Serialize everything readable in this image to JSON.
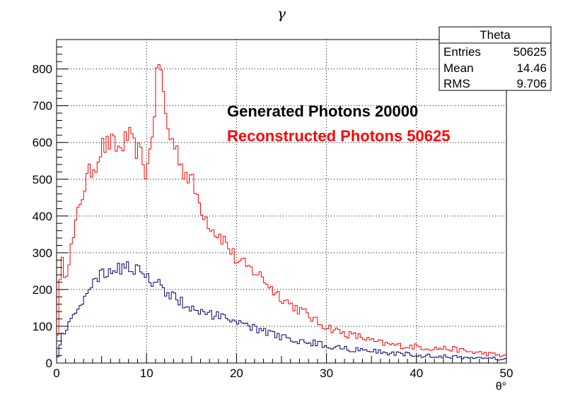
{
  "chart_data": {
    "type": "line",
    "title": "γ",
    "xlabel": "θ°",
    "ylabel": "",
    "xlim": [
      0,
      50
    ],
    "ylim": [
      0,
      880
    ],
    "x_ticks": [
      0,
      10,
      20,
      30,
      40,
      50
    ],
    "y_ticks": [
      0,
      100,
      200,
      300,
      400,
      500,
      600,
      700,
      800
    ],
    "grid": true,
    "bin_width": 0.25,
    "annotations": [
      {
        "text": "Generated Photons 20000",
        "color": "#000000"
      },
      {
        "text": "Reconstructed Photons 50625",
        "color": "#ff0000"
      }
    ],
    "stats_box": {
      "title": "Theta",
      "rows": [
        {
          "label": "Entries",
          "value": "50625"
        },
        {
          "label": "Mean",
          "value": "14.46"
        },
        {
          "label": "RMS",
          "value": "9.706"
        }
      ]
    },
    "series": [
      {
        "color": "#ff0000",
        "x": [
          0,
          0.5,
          1,
          1.5,
          2,
          2.5,
          3,
          3.5,
          4,
          4.5,
          5,
          5.5,
          6,
          6.5,
          7,
          7.5,
          8,
          8.5,
          9,
          9.5,
          10,
          10.5,
          11,
          11.25,
          11.5,
          11.75,
          12,
          12.5,
          13,
          13.5,
          14,
          14.5,
          15,
          15.5,
          16,
          16.5,
          17,
          17.5,
          18,
          18.5,
          19,
          19.5,
          20,
          20.5,
          21,
          21.5,
          22,
          23,
          24,
          25,
          26,
          27,
          28,
          29,
          30,
          31,
          32,
          33,
          34,
          35,
          36,
          37,
          38,
          39,
          40,
          41,
          42,
          43,
          44,
          45,
          46,
          47,
          48,
          49,
          50
        ],
        "values": [
          20,
          280,
          240,
          300,
          350,
          430,
          470,
          510,
          530,
          550,
          590,
          590,
          600,
          590,
          580,
          600,
          620,
          590,
          580,
          560,
          510,
          600,
          720,
          820,
          830,
          760,
          690,
          620,
          600,
          570,
          530,
          510,
          500,
          460,
          430,
          400,
          380,
          360,
          350,
          340,
          320,
          300,
          280,
          270,
          265,
          255,
          250,
          230,
          200,
          180,
          160,
          145,
          130,
          110,
          100,
          90,
          80,
          75,
          70,
          60,
          55,
          50,
          48,
          45,
          45,
          42,
          40,
          40,
          38,
          35,
          30,
          28,
          25,
          22,
          18
        ]
      },
      {
        "color": "#00006e",
        "x": [
          0,
          0.5,
          1,
          1.5,
          2,
          2.5,
          3,
          3.5,
          4,
          4.5,
          5,
          5.5,
          6,
          6.5,
          7,
          7.5,
          8,
          8.5,
          9,
          9.5,
          10,
          10.5,
          11,
          11.5,
          12,
          12.5,
          13,
          13.5,
          14,
          14.5,
          15,
          15.5,
          16,
          16.5,
          17,
          17.5,
          18,
          18.5,
          19,
          20,
          21,
          22,
          23,
          24,
          25,
          26,
          27,
          28,
          29,
          30,
          31,
          32,
          33,
          34,
          35,
          36,
          37,
          38,
          39,
          40,
          41,
          42,
          43,
          44,
          45,
          46,
          47,
          48,
          49,
          50
        ],
        "values": [
          5,
          70,
          90,
          110,
          130,
          150,
          180,
          200,
          215,
          225,
          240,
          240,
          250,
          260,
          255,
          265,
          265,
          250,
          250,
          245,
          250,
          225,
          205,
          215,
          200,
          190,
          180,
          175,
          165,
          155,
          150,
          148,
          140,
          135,
          130,
          130,
          125,
          120,
          120,
          110,
          100,
          95,
          85,
          80,
          72,
          65,
          60,
          58,
          52,
          48,
          44,
          40,
          37,
          35,
          32,
          30,
          28,
          26,
          24,
          22,
          20,
          19,
          18,
          17,
          16,
          15,
          14,
          13,
          12,
          10
        ]
      }
    ]
  }
}
